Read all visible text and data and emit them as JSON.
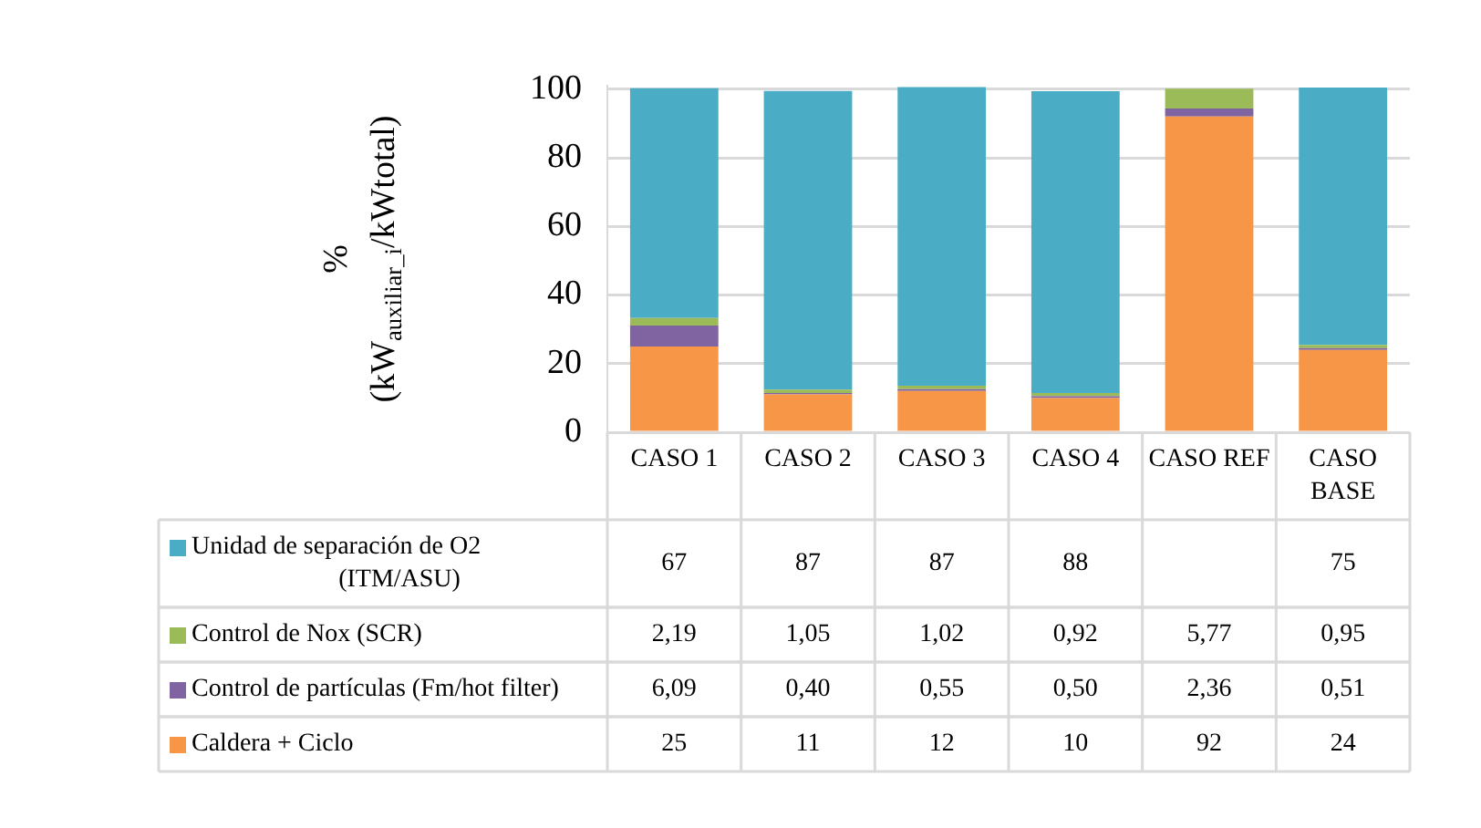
{
  "chart_data": {
    "type": "bar",
    "stacked": true,
    "ylabel": "%\n(kW$_{auxiliar_i}$/kWtotal)",
    "categories": [
      "CASO 1",
      "CASO 2",
      "CASO 3",
      "CASO 4",
      "CASO REF",
      "CASO BASE"
    ],
    "series": [
      {
        "name": "Caldera + Ciclo",
        "color": "#f79646",
        "values": [
          25,
          11,
          12,
          10,
          92,
          24
        ],
        "value_labels": [
          "25",
          "11",
          "12",
          "10",
          "92",
          "24"
        ]
      },
      {
        "name": "Control de partículas (Fm/hot filter)",
        "color": "#8064a2",
        "values": [
          6.09,
          0.4,
          0.55,
          0.5,
          2.36,
          0.51
        ],
        "value_labels": [
          "6,09",
          "0,40",
          "0,55",
          "0,50",
          "2,36",
          "0,51"
        ]
      },
      {
        "name": "Control de Nox (SCR)",
        "color": "#9bbb59",
        "values": [
          2.19,
          1.05,
          1.02,
          0.92,
          5.77,
          0.95
        ],
        "value_labels": [
          "2,19",
          "1,05",
          "1,02",
          "0,92",
          "5,77",
          "0,95"
        ]
      },
      {
        "name": "Unidad de separación de O2 (ITM/ASU)",
        "color": "#4bacc6",
        "values": [
          67,
          87,
          87,
          88,
          null,
          75
        ],
        "value_labels": [
          "67",
          "87",
          "87",
          "88",
          null,
          "75"
        ]
      }
    ],
    "ylim": [
      0,
      101
    ],
    "yticks": [
      0,
      20,
      40,
      60,
      80,
      100
    ],
    "grid": "y",
    "legend": "bottom"
  }
}
